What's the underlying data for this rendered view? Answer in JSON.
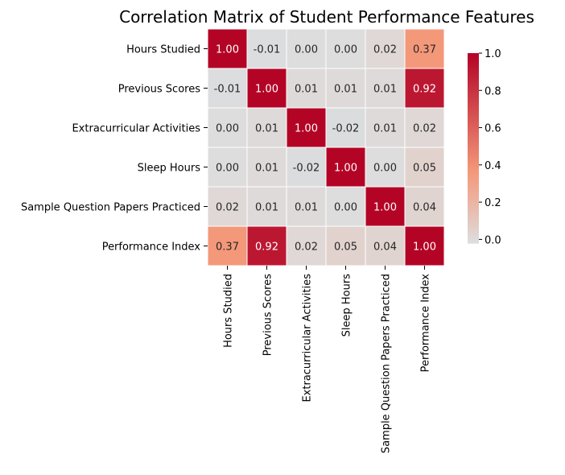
{
  "chart_data": {
    "type": "heatmap",
    "title": "Correlation Matrix of Student Performance Features",
    "rows": [
      "Hours Studied",
      "Previous Scores",
      "Extracurricular Activities",
      "Sleep Hours",
      "Sample Question Papers Practiced",
      "Performance Index"
    ],
    "columns": [
      "Hours Studied",
      "Previous Scores",
      "Extracurricular Activities",
      "Sleep Hours",
      "Sample Question Papers Practiced",
      "Performance Index"
    ],
    "values": [
      [
        1.0,
        -0.01,
        0.0,
        0.0,
        0.02,
        0.37
      ],
      [
        -0.01,
        1.0,
        0.01,
        0.01,
        0.01,
        0.92
      ],
      [
        0.0,
        0.01,
        1.0,
        -0.02,
        0.01,
        0.02
      ],
      [
        0.0,
        0.01,
        -0.02,
        1.0,
        0.0,
        0.05
      ],
      [
        0.02,
        0.01,
        0.01,
        0.0,
        1.0,
        0.04
      ],
      [
        0.37,
        0.92,
        0.02,
        0.05,
        0.04,
        1.0
      ]
    ],
    "annotation_format": "0.00",
    "colormap": "coolwarm",
    "color_center": 0,
    "vmin": -0.02,
    "vmax": 1.0,
    "colorbar": {
      "ticks": [
        0.0,
        0.2,
        0.4,
        0.6,
        0.8,
        1.0
      ],
      "tick_labels": [
        "0.0",
        "0.2",
        "0.4",
        "0.6",
        "0.8",
        "1.0"
      ],
      "position": "right"
    },
    "gridlines": "white",
    "colors": {
      "low": "#dcdddd",
      "mid": "#f4987a",
      "high": "#b40426"
    }
  }
}
